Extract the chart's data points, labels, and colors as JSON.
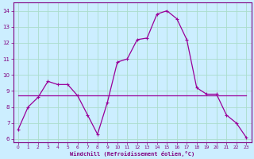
{
  "x": [
    0,
    1,
    2,
    3,
    4,
    5,
    6,
    7,
    8,
    9,
    10,
    11,
    12,
    13,
    14,
    15,
    16,
    17,
    18,
    19,
    20,
    21,
    22,
    23
  ],
  "y_curve": [
    6.6,
    8.0,
    8.6,
    9.6,
    9.4,
    9.4,
    8.7,
    7.5,
    6.3,
    8.3,
    10.8,
    11.0,
    12.2,
    12.3,
    13.8,
    14.0,
    13.5,
    12.2,
    9.2,
    8.8,
    8.8,
    7.5,
    7.0,
    6.1
  ],
  "y_flat": [
    8.7,
    8.7,
    8.7,
    8.7,
    8.7,
    8.7,
    8.7,
    8.7,
    8.7,
    8.7,
    8.7,
    8.7,
    8.7,
    8.7,
    8.7,
    8.7,
    8.7,
    8.7,
    8.7,
    8.7,
    8.7,
    8.7,
    8.7,
    8.7
  ],
  "line_color": "#990099",
  "bg_color": "#cceeff",
  "grid_color": "#aaddcc",
  "xlabel": "Windchill (Refroidissement éolien,°C)",
  "xlabel_color": "#800080",
  "tick_color": "#800080",
  "axis_color": "#800080",
  "ylim": [
    5.8,
    14.5
  ],
  "xlim": [
    -0.5,
    23.5
  ],
  "yticks": [
    6,
    7,
    8,
    9,
    10,
    11,
    12,
    13,
    14
  ],
  "xticks": [
    0,
    1,
    2,
    3,
    4,
    5,
    6,
    7,
    8,
    9,
    10,
    11,
    12,
    13,
    14,
    15,
    16,
    17,
    18,
    19,
    20,
    21,
    22,
    23
  ]
}
